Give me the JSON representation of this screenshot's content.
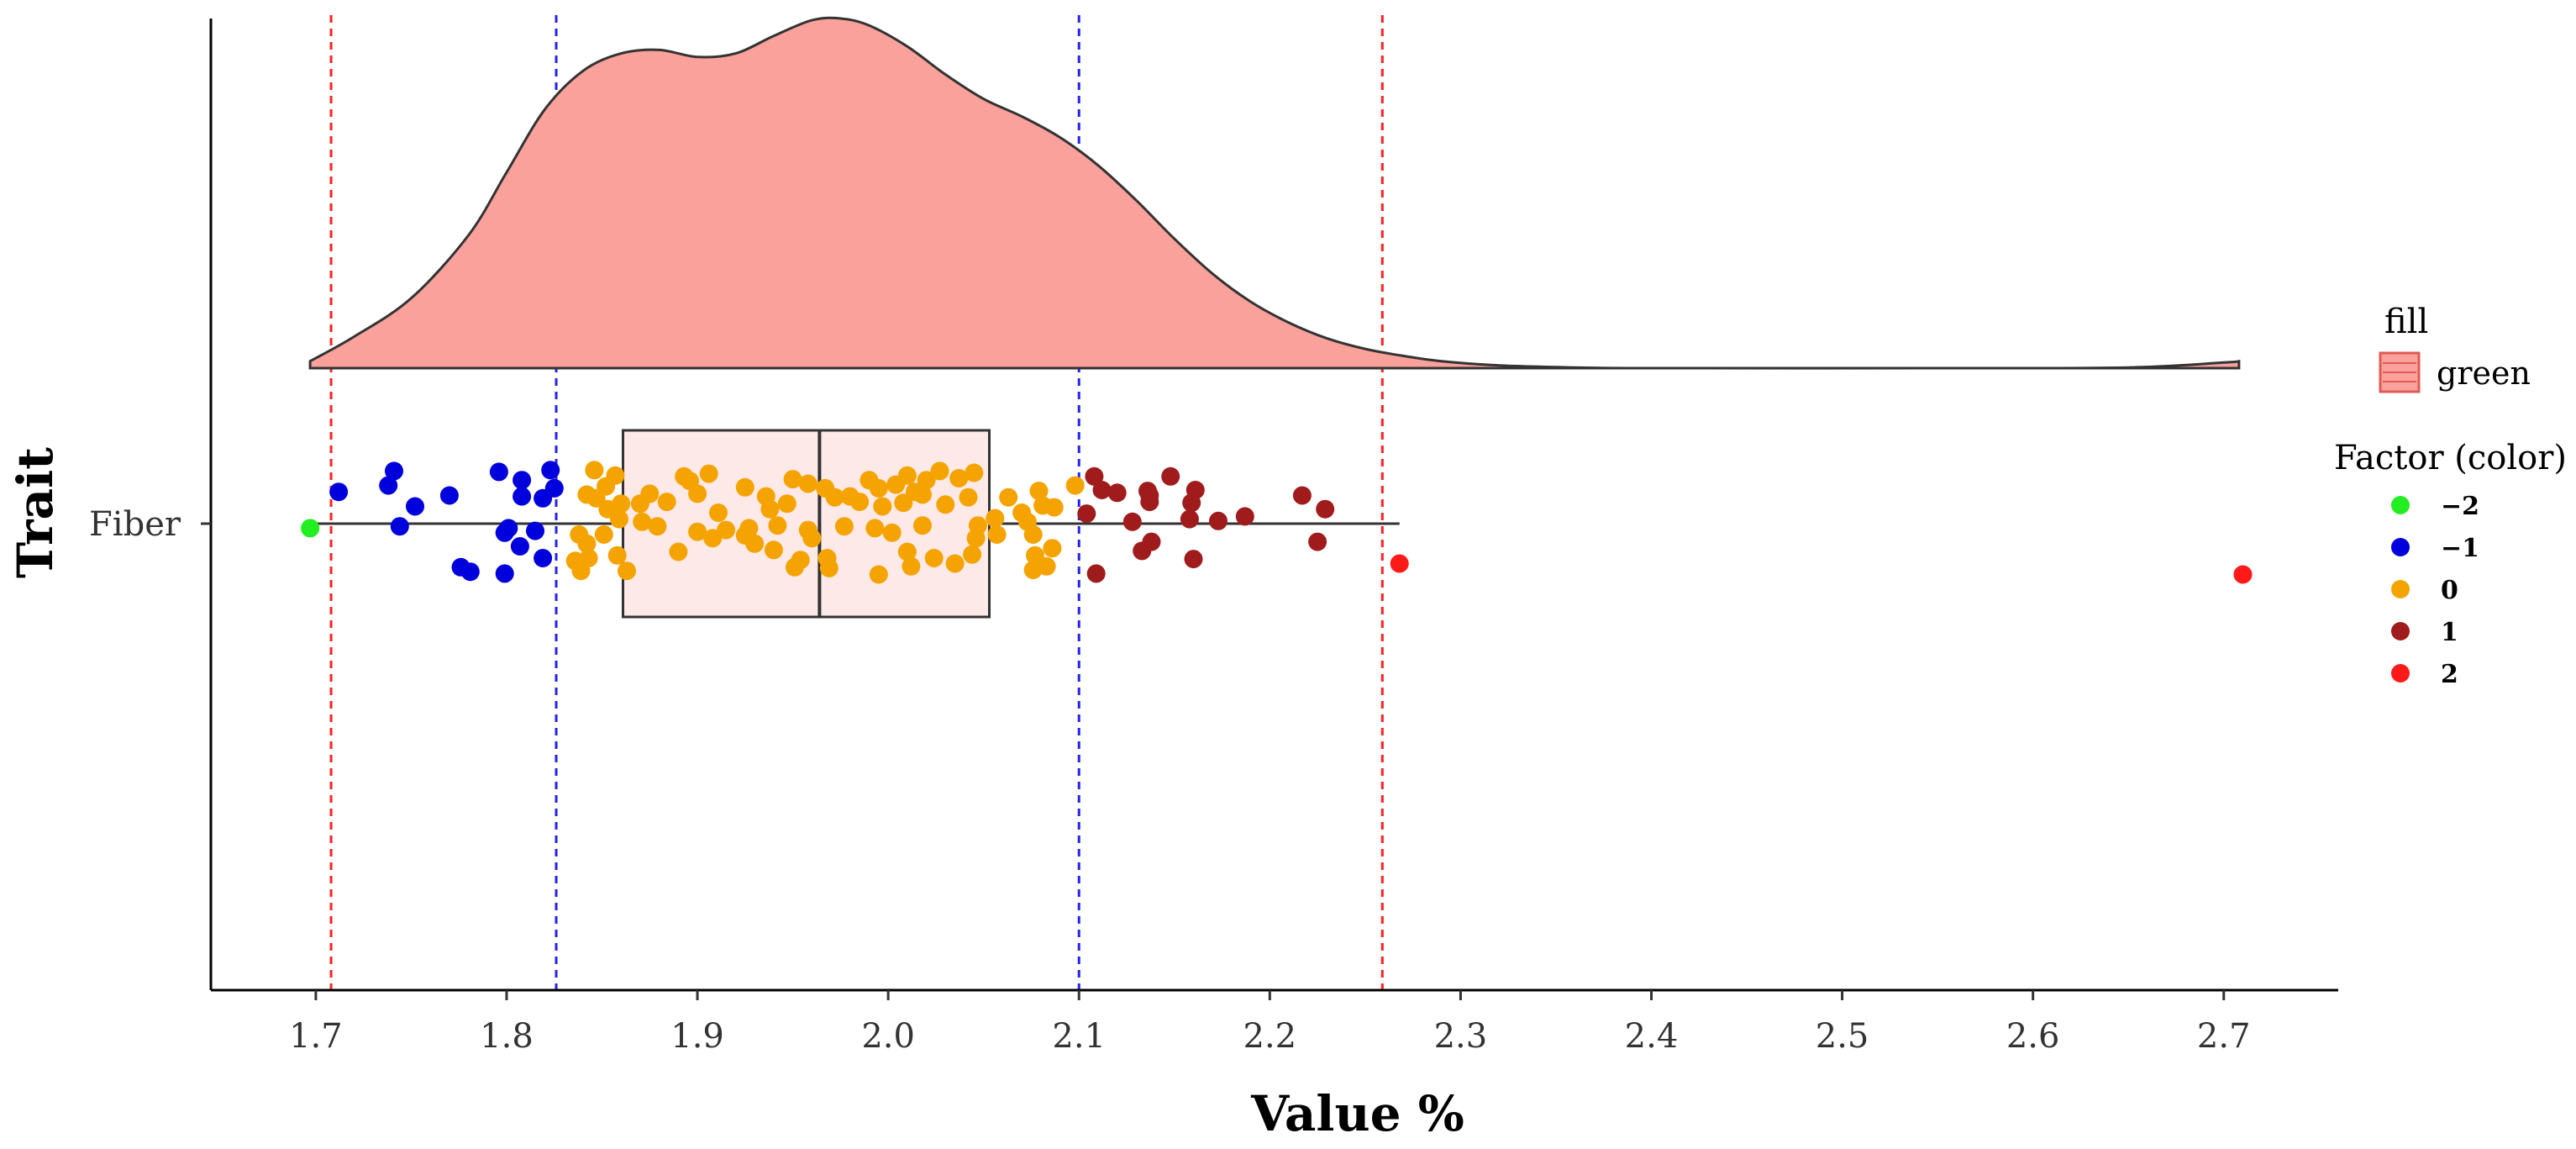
{
  "chart_data": {
    "type": "raincloud",
    "title": "",
    "xlabel": "Value %",
    "ylabel": "Trait",
    "xlim": [
      1.645,
      2.76
    ],
    "x_ticks": [
      "1.7",
      "1.8",
      "1.9",
      "2.0",
      "2.1",
      "2.2",
      "2.3",
      "2.4",
      "2.5",
      "2.6",
      "2.7"
    ],
    "category": "Fiber",
    "density_fill": "#fba19c",
    "density": [
      [
        1.697,
        0.02
      ],
      [
        1.72,
        0.09
      ],
      [
        1.75,
        0.2
      ],
      [
        1.78,
        0.38
      ],
      [
        1.8,
        0.56
      ],
      [
        1.82,
        0.74
      ],
      [
        1.84,
        0.85
      ],
      [
        1.86,
        0.9
      ],
      [
        1.88,
        0.91
      ],
      [
        1.9,
        0.89
      ],
      [
        1.92,
        0.9
      ],
      [
        1.94,
        0.95
      ],
      [
        1.96,
        0.995
      ],
      [
        1.975,
        1.0
      ],
      [
        1.99,
        0.98
      ],
      [
        2.01,
        0.92
      ],
      [
        2.03,
        0.84
      ],
      [
        2.05,
        0.77
      ],
      [
        2.07,
        0.72
      ],
      [
        2.09,
        0.66
      ],
      [
        2.11,
        0.58
      ],
      [
        2.13,
        0.48
      ],
      [
        2.15,
        0.37
      ],
      [
        2.17,
        0.27
      ],
      [
        2.19,
        0.19
      ],
      [
        2.21,
        0.13
      ],
      [
        2.23,
        0.085
      ],
      [
        2.25,
        0.055
      ],
      [
        2.27,
        0.035
      ],
      [
        2.29,
        0.02
      ],
      [
        2.32,
        0.008
      ],
      [
        2.36,
        0.002
      ],
      [
        2.4,
        0.0
      ],
      [
        2.55,
        0.0
      ],
      [
        2.65,
        0.002
      ],
      [
        2.7,
        0.016
      ],
      [
        2.708,
        0.02
      ]
    ],
    "boxplot": {
      "min": 1.697,
      "q1": 1.861,
      "median": 1.964,
      "q3": 2.053,
      "max": 2.268
    },
    "reference_lines": [
      {
        "x": 1.708,
        "color": "#ff2222",
        "style": "dashed"
      },
      {
        "x": 1.826,
        "color": "#2222ee",
        "style": "dashed"
      },
      {
        "x": 2.1,
        "color": "#2222ee",
        "style": "dashed"
      },
      {
        "x": 2.259,
        "color": "#ff2222",
        "style": "dashed"
      }
    ],
    "factor_colors": {
      "-2": "#22ee22",
      "-1": "#0000dd",
      "0": "#f5a300",
      "1": "#a01c1c",
      "2": "#ff1a1a"
    },
    "points": [
      {
        "x": 1.697,
        "j": -0.05,
        "f": "-2"
      },
      {
        "x": 1.712,
        "j": 0.35,
        "f": "-1"
      },
      {
        "x": 1.741,
        "j": 0.58,
        "f": "-1"
      },
      {
        "x": 1.738,
        "j": 0.42,
        "f": "-1"
      },
      {
        "x": 1.752,
        "j": 0.19,
        "f": "-1"
      },
      {
        "x": 1.744,
        "j": -0.03,
        "f": "-1"
      },
      {
        "x": 1.77,
        "j": 0.31,
        "f": "-1"
      },
      {
        "x": 1.776,
        "j": -0.48,
        "f": "-1"
      },
      {
        "x": 1.781,
        "j": -0.53,
        "f": "-1"
      },
      {
        "x": 1.796,
        "j": 0.57,
        "f": "-1"
      },
      {
        "x": 1.808,
        "j": 0.48,
        "f": "-1"
      },
      {
        "x": 1.808,
        "j": 0.3,
        "f": "-1"
      },
      {
        "x": 1.819,
        "j": 0.28,
        "f": "-1"
      },
      {
        "x": 1.801,
        "j": -0.05,
        "f": "-1"
      },
      {
        "x": 1.799,
        "j": -0.1,
        "f": "-1"
      },
      {
        "x": 1.815,
        "j": -0.08,
        "f": "-1"
      },
      {
        "x": 1.807,
        "j": -0.25,
        "f": "-1"
      },
      {
        "x": 1.819,
        "j": -0.38,
        "f": "-1"
      },
      {
        "x": 1.799,
        "j": -0.55,
        "f": "-1"
      },
      {
        "x": 1.823,
        "j": 0.59,
        "f": "-1"
      },
      {
        "x": 1.825,
        "j": 0.39,
        "f": "-1"
      },
      {
        "x": 1.846,
        "j": 0.59,
        "f": "0"
      },
      {
        "x": 1.857,
        "j": 0.53,
        "f": "0"
      },
      {
        "x": 1.852,
        "j": 0.41,
        "f": "0"
      },
      {
        "x": 1.842,
        "j": 0.32,
        "f": "0"
      },
      {
        "x": 1.847,
        "j": 0.28,
        "f": "0"
      },
      {
        "x": 1.86,
        "j": 0.22,
        "f": "0"
      },
      {
        "x": 1.853,
        "j": 0.16,
        "f": "0"
      },
      {
        "x": 1.875,
        "j": 0.33,
        "f": "0"
      },
      {
        "x": 1.87,
        "j": 0.22,
        "f": "0"
      },
      {
        "x": 1.884,
        "j": 0.24,
        "f": "0"
      },
      {
        "x": 1.893,
        "j": 0.52,
        "f": "0"
      },
      {
        "x": 1.896,
        "j": 0.47,
        "f": "0"
      },
      {
        "x": 1.906,
        "j": 0.55,
        "f": "0"
      },
      {
        "x": 1.9,
        "j": 0.33,
        "f": "0"
      },
      {
        "x": 1.911,
        "j": 0.12,
        "f": "0"
      },
      {
        "x": 1.925,
        "j": 0.4,
        "f": "0"
      },
      {
        "x": 1.936,
        "j": 0.3,
        "f": "0"
      },
      {
        "x": 1.938,
        "j": 0.16,
        "f": "0"
      },
      {
        "x": 1.947,
        "j": 0.22,
        "f": "0"
      },
      {
        "x": 1.95,
        "j": 0.49,
        "f": "0"
      },
      {
        "x": 1.958,
        "j": 0.44,
        "f": "0"
      },
      {
        "x": 1.967,
        "j": 0.39,
        "f": "0"
      },
      {
        "x": 1.972,
        "j": 0.29,
        "f": "0"
      },
      {
        "x": 1.99,
        "j": 0.48,
        "f": "0"
      },
      {
        "x": 1.995,
        "j": 0.39,
        "f": "0"
      },
      {
        "x": 2.004,
        "j": 0.43,
        "f": "0"
      },
      {
        "x": 2.014,
        "j": 0.35,
        "f": "0"
      },
      {
        "x": 2.02,
        "j": 0.48,
        "f": "0"
      },
      {
        "x": 2.037,
        "j": 0.5,
        "f": "0"
      },
      {
        "x": 2.045,
        "j": 0.56,
        "f": "0"
      },
      {
        "x": 2.027,
        "j": 0.58,
        "f": "0"
      },
      {
        "x": 2.01,
        "j": 0.53,
        "f": "0"
      },
      {
        "x": 1.98,
        "j": 0.3,
        "f": "0"
      },
      {
        "x": 1.985,
        "j": 0.24,
        "f": "0"
      },
      {
        "x": 1.997,
        "j": 0.19,
        "f": "0"
      },
      {
        "x": 2.008,
        "j": 0.23,
        "f": "0"
      },
      {
        "x": 2.018,
        "j": 0.32,
        "f": "0"
      },
      {
        "x": 2.03,
        "j": 0.21,
        "f": "0"
      },
      {
        "x": 2.042,
        "j": 0.29,
        "f": "0"
      },
      {
        "x": 1.859,
        "j": 0.05,
        "f": "0"
      },
      {
        "x": 1.871,
        "j": 0.02,
        "f": "0"
      },
      {
        "x": 1.879,
        "j": -0.03,
        "f": "0"
      },
      {
        "x": 1.9,
        "j": -0.09,
        "f": "0"
      },
      {
        "x": 1.915,
        "j": -0.07,
        "f": "0"
      },
      {
        "x": 1.927,
        "j": -0.05,
        "f": "0"
      },
      {
        "x": 1.942,
        "j": -0.02,
        "f": "0"
      },
      {
        "x": 1.958,
        "j": -0.07,
        "f": "0"
      },
      {
        "x": 1.96,
        "j": -0.16,
        "f": "0"
      },
      {
        "x": 1.977,
        "j": -0.03,
        "f": "0"
      },
      {
        "x": 1.993,
        "j": -0.05,
        "f": "0"
      },
      {
        "x": 2.018,
        "j": -0.02,
        "f": "0"
      },
      {
        "x": 2.047,
        "j": -0.02,
        "f": "0"
      },
      {
        "x": 2.056,
        "j": 0.06,
        "f": "0"
      },
      {
        "x": 2.073,
        "j": 0.02,
        "f": "0"
      },
      {
        "x": 1.838,
        "j": -0.12,
        "f": "0"
      },
      {
        "x": 1.842,
        "j": -0.22,
        "f": "0"
      },
      {
        "x": 1.851,
        "j": -0.12,
        "f": "0"
      },
      {
        "x": 1.836,
        "j": -0.41,
        "f": "0"
      },
      {
        "x": 1.843,
        "j": -0.38,
        "f": "0"
      },
      {
        "x": 1.858,
        "j": -0.35,
        "f": "0"
      },
      {
        "x": 1.839,
        "j": -0.52,
        "f": "0"
      },
      {
        "x": 1.863,
        "j": -0.52,
        "f": "0"
      },
      {
        "x": 1.89,
        "j": -0.31,
        "f": "0"
      },
      {
        "x": 1.908,
        "j": -0.16,
        "f": "0"
      },
      {
        "x": 1.925,
        "j": -0.13,
        "f": "0"
      },
      {
        "x": 1.93,
        "j": -0.22,
        "f": "0"
      },
      {
        "x": 1.94,
        "j": -0.29,
        "f": "0"
      },
      {
        "x": 1.954,
        "j": -0.4,
        "f": "0"
      },
      {
        "x": 1.968,
        "j": -0.38,
        "f": "0"
      },
      {
        "x": 1.951,
        "j": -0.48,
        "f": "0"
      },
      {
        "x": 1.969,
        "j": -0.49,
        "f": "0"
      },
      {
        "x": 1.995,
        "j": -0.56,
        "f": "0"
      },
      {
        "x": 2.012,
        "j": -0.47,
        "f": "0"
      },
      {
        "x": 2.035,
        "j": -0.44,
        "f": "0"
      },
      {
        "x": 2.044,
        "j": -0.34,
        "f": "0"
      },
      {
        "x": 2.046,
        "j": -0.16,
        "f": "0"
      },
      {
        "x": 2.057,
        "j": -0.12,
        "f": "0"
      },
      {
        "x": 2.076,
        "j": -0.12,
        "f": "0"
      },
      {
        "x": 2.077,
        "j": -0.35,
        "f": "0"
      },
      {
        "x": 2.083,
        "j": -0.47,
        "f": "0"
      },
      {
        "x": 2.076,
        "j": -0.51,
        "f": "0"
      },
      {
        "x": 2.086,
        "j": -0.27,
        "f": "0"
      },
      {
        "x": 2.01,
        "j": -0.31,
        "f": "0"
      },
      {
        "x": 2.024,
        "j": -0.38,
        "f": "0"
      },
      {
        "x": 2.002,
        "j": -0.1,
        "f": "0"
      },
      {
        "x": 2.07,
        "j": 0.12,
        "f": "0"
      },
      {
        "x": 2.081,
        "j": 0.2,
        "f": "0"
      },
      {
        "x": 2.087,
        "j": 0.18,
        "f": "0"
      },
      {
        "x": 2.079,
        "j": 0.36,
        "f": "0"
      },
      {
        "x": 2.098,
        "j": 0.42,
        "f": "0"
      },
      {
        "x": 2.063,
        "j": 0.29,
        "f": "0"
      },
      {
        "x": 2.108,
        "j": 0.52,
        "f": "1"
      },
      {
        "x": 2.112,
        "j": 0.37,
        "f": "1"
      },
      {
        "x": 2.12,
        "j": 0.34,
        "f": "1"
      },
      {
        "x": 2.104,
        "j": 0.11,
        "f": "1"
      },
      {
        "x": 2.136,
        "j": 0.36,
        "f": "1"
      },
      {
        "x": 2.137,
        "j": 0.31,
        "f": "1"
      },
      {
        "x": 2.137,
        "j": 0.24,
        "f": "1"
      },
      {
        "x": 2.148,
        "j": 0.52,
        "f": "1"
      },
      {
        "x": 2.161,
        "j": 0.37,
        "f": "1"
      },
      {
        "x": 2.159,
        "j": 0.23,
        "f": "1"
      },
      {
        "x": 2.128,
        "j": 0.02,
        "f": "1"
      },
      {
        "x": 2.158,
        "j": 0.05,
        "f": "1"
      },
      {
        "x": 2.173,
        "j": 0.03,
        "f": "1"
      },
      {
        "x": 2.187,
        "j": 0.08,
        "f": "1"
      },
      {
        "x": 2.217,
        "j": 0.31,
        "f": "1"
      },
      {
        "x": 2.229,
        "j": 0.16,
        "f": "1"
      },
      {
        "x": 2.138,
        "j": -0.2,
        "f": "1"
      },
      {
        "x": 2.133,
        "j": -0.3,
        "f": "1"
      },
      {
        "x": 2.16,
        "j": -0.39,
        "f": "1"
      },
      {
        "x": 2.225,
        "j": -0.2,
        "f": "1"
      },
      {
        "x": 2.109,
        "j": -0.55,
        "f": "1"
      },
      {
        "x": 2.268,
        "j": -0.44,
        "f": "2"
      },
      {
        "x": 2.71,
        "j": -0.56,
        "f": "2"
      }
    ]
  },
  "legend": {
    "fill_title": "fill",
    "fill_label": "green",
    "factor_title": "Factor (color)",
    "factor_items": [
      {
        "label": "−2",
        "color": "#22ee22"
      },
      {
        "label": "−1",
        "color": "#0000dd"
      },
      {
        "label": "0",
        "color": "#f5a300"
      },
      {
        "label": "1",
        "color": "#a01c1c"
      },
      {
        "label": "2",
        "color": "#ff1a1a"
      }
    ]
  }
}
